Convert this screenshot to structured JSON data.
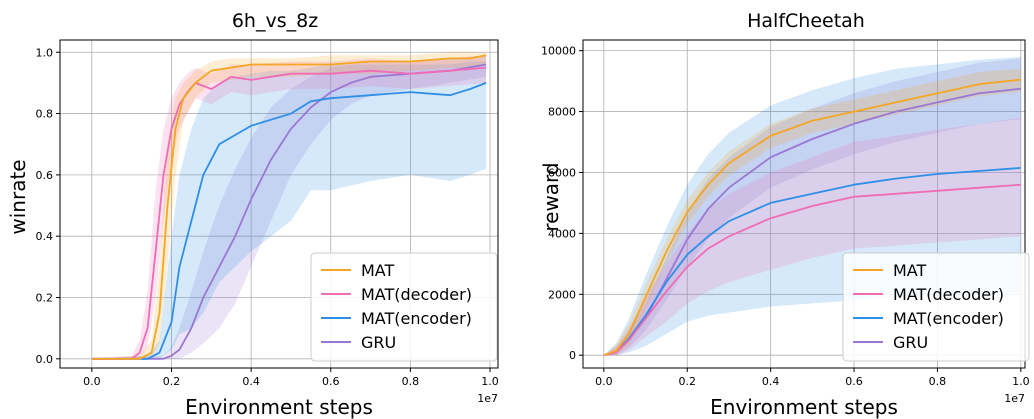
{
  "legend": {
    "entries": [
      {
        "key": "mat",
        "label": "MAT",
        "color": "#F5A623"
      },
      {
        "key": "dec",
        "label": "MAT(decoder)",
        "color": "#F06CB5"
      },
      {
        "key": "enc",
        "label": "MAT(encoder)",
        "color": "#2F8FE8"
      },
      {
        "key": "gru",
        "label": "GRU",
        "color": "#9B77D4"
      }
    ]
  },
  "chart_data": [
    {
      "type": "line",
      "title": "6h_vs_8z",
      "xlabel": "Environment steps",
      "ylabel": "winrate",
      "x_multiplier": "1e7",
      "xlim": [
        -0.08,
        1.02
      ],
      "ylim": [
        -0.03,
        1.04
      ],
      "xticks": [
        "0.0",
        "0.2",
        "0.4",
        "0.6",
        "0.8",
        "1.0"
      ],
      "yticks": [
        "0.0",
        "0.2",
        "0.4",
        "0.6",
        "0.8",
        "1.0"
      ],
      "grid": true,
      "legend_position": "lower-right",
      "series": [
        {
          "name": "MAT",
          "color": "#F5A623",
          "x": [
            0,
            0.12,
            0.15,
            0.17,
            0.19,
            0.21,
            0.23,
            0.26,
            0.3,
            0.35,
            0.4,
            0.5,
            0.6,
            0.7,
            0.8,
            0.9,
            0.95,
            0.99
          ],
          "y": [
            0,
            0,
            0.02,
            0.15,
            0.5,
            0.75,
            0.85,
            0.9,
            0.94,
            0.95,
            0.96,
            0.96,
            0.96,
            0.97,
            0.97,
            0.98,
            0.98,
            0.99
          ],
          "band": [
            [
              0,
              0
            ],
            [
              0,
              0.01
            ],
            [
              0,
              0.06
            ],
            [
              0.05,
              0.3
            ],
            [
              0.3,
              0.7
            ],
            [
              0.6,
              0.85
            ],
            [
              0.78,
              0.9
            ],
            [
              0.85,
              0.94
            ],
            [
              0.9,
              0.97
            ],
            [
              0.91,
              0.98
            ],
            [
              0.92,
              0.98
            ],
            [
              0.92,
              0.98
            ],
            [
              0.93,
              0.99
            ],
            [
              0.93,
              0.99
            ],
            [
              0.94,
              0.99
            ],
            [
              0.95,
              1.0
            ],
            [
              0.95,
              1.0
            ],
            [
              0.96,
              1.0
            ]
          ]
        },
        {
          "name": "MAT(decoder)",
          "color": "#F06CB5",
          "x": [
            0,
            0.1,
            0.12,
            0.14,
            0.16,
            0.18,
            0.2,
            0.22,
            0.24,
            0.26,
            0.3,
            0.35,
            0.4,
            0.5,
            0.6,
            0.7,
            0.8,
            0.9,
            0.99
          ],
          "y": [
            0,
            0,
            0.02,
            0.1,
            0.35,
            0.6,
            0.75,
            0.83,
            0.87,
            0.9,
            0.88,
            0.92,
            0.91,
            0.93,
            0.93,
            0.94,
            0.93,
            0.94,
            0.95
          ],
          "band": [
            [
              0,
              0
            ],
            [
              0,
              0.01
            ],
            [
              0,
              0.06
            ],
            [
              0.04,
              0.22
            ],
            [
              0.2,
              0.55
            ],
            [
              0.45,
              0.75
            ],
            [
              0.65,
              0.85
            ],
            [
              0.75,
              0.9
            ],
            [
              0.8,
              0.93
            ],
            [
              0.85,
              0.95
            ],
            [
              0.83,
              0.93
            ],
            [
              0.87,
              0.96
            ],
            [
              0.86,
              0.96
            ],
            [
              0.88,
              0.97
            ],
            [
              0.88,
              0.97
            ],
            [
              0.89,
              0.98
            ],
            [
              0.88,
              0.97
            ],
            [
              0.89,
              0.98
            ],
            [
              0.9,
              0.99
            ]
          ]
        },
        {
          "name": "MAT(encoder)",
          "color": "#2F8FE8",
          "x": [
            0,
            0.14,
            0.17,
            0.2,
            0.22,
            0.25,
            0.28,
            0.32,
            0.36,
            0.4,
            0.45,
            0.5,
            0.55,
            0.6,
            0.7,
            0.8,
            0.9,
            0.95,
            0.99
          ],
          "y": [
            0,
            0,
            0.02,
            0.12,
            0.3,
            0.45,
            0.6,
            0.7,
            0.73,
            0.76,
            0.78,
            0.8,
            0.84,
            0.85,
            0.86,
            0.87,
            0.86,
            0.88,
            0.9
          ],
          "band": [
            [
              0,
              0
            ],
            [
              0,
              0.01
            ],
            [
              0,
              0.06
            ],
            [
              0.03,
              0.4
            ],
            [
              0.08,
              0.6
            ],
            [
              0.1,
              0.75
            ],
            [
              0.15,
              0.85
            ],
            [
              0.25,
              0.9
            ],
            [
              0.3,
              0.92
            ],
            [
              0.35,
              0.93
            ],
            [
              0.4,
              0.94
            ],
            [
              0.45,
              0.94
            ],
            [
              0.55,
              0.95
            ],
            [
              0.55,
              0.96
            ],
            [
              0.58,
              0.96
            ],
            [
              0.6,
              0.96
            ],
            [
              0.58,
              0.96
            ],
            [
              0.6,
              0.97
            ],
            [
              0.62,
              0.97
            ]
          ]
        },
        {
          "name": "GRU",
          "color": "#9B77D4",
          "x": [
            0,
            0.18,
            0.2,
            0.22,
            0.25,
            0.28,
            0.32,
            0.36,
            0.4,
            0.45,
            0.5,
            0.55,
            0.6,
            0.65,
            0.7,
            0.8,
            0.9,
            0.99
          ],
          "y": [
            0,
            0,
            0.01,
            0.03,
            0.1,
            0.2,
            0.3,
            0.4,
            0.52,
            0.65,
            0.75,
            0.82,
            0.87,
            0.9,
            0.92,
            0.93,
            0.94,
            0.96
          ],
          "band": [
            [
              0,
              0
            ],
            [
              0,
              0.01
            ],
            [
              0,
              0.04
            ],
            [
              0,
              0.1
            ],
            [
              0.02,
              0.22
            ],
            [
              0.05,
              0.35
            ],
            [
              0.1,
              0.5
            ],
            [
              0.18,
              0.62
            ],
            [
              0.3,
              0.72
            ],
            [
              0.45,
              0.82
            ],
            [
              0.6,
              0.88
            ],
            [
              0.7,
              0.92
            ],
            [
              0.78,
              0.95
            ],
            [
              0.83,
              0.96
            ],
            [
              0.86,
              0.97
            ],
            [
              0.88,
              0.97
            ],
            [
              0.9,
              0.98
            ],
            [
              0.92,
              0.99
            ]
          ]
        }
      ]
    },
    {
      "type": "line",
      "title": "HalfCheetah",
      "xlabel": "Environment steps",
      "ylabel": "reward",
      "x_multiplier": "1e7",
      "xlim": [
        -0.05,
        1.01
      ],
      "ylim": [
        -420,
        10350
      ],
      "xticks": [
        "0.0",
        "0.2",
        "0.4",
        "0.6",
        "0.8",
        "1.0"
      ],
      "yticks": [
        "0",
        "2000",
        "4000",
        "6000",
        "8000",
        "10000"
      ],
      "grid": true,
      "legend_position": "lower-right",
      "series": [
        {
          "name": "MAT",
          "color": "#F5A623",
          "x": [
            0,
            0.03,
            0.06,
            0.1,
            0.15,
            0.2,
            0.25,
            0.3,
            0.4,
            0.5,
            0.6,
            0.7,
            0.8,
            0.9,
            1.0
          ],
          "y": [
            0,
            150,
            700,
            1900,
            3400,
            4700,
            5600,
            6300,
            7200,
            7700,
            8000,
            8300,
            8600,
            8900,
            9050
          ],
          "band": [
            [
              0,
              0
            ],
            [
              0,
              350
            ],
            [
              350,
              1050
            ],
            [
              1500,
              2300
            ],
            [
              3000,
              3800
            ],
            [
              4300,
              5100
            ],
            [
              5200,
              6000
            ],
            [
              5900,
              6700
            ],
            [
              6800,
              7600
            ],
            [
              7300,
              8100
            ],
            [
              7600,
              8400
            ],
            [
              7900,
              8700
            ],
            [
              8200,
              9000
            ],
            [
              8500,
              9300
            ],
            [
              8650,
              9400
            ]
          ]
        },
        {
          "name": "MAT(decoder)",
          "color": "#F06CB5",
          "x": [
            0,
            0.03,
            0.06,
            0.1,
            0.15,
            0.2,
            0.25,
            0.3,
            0.4,
            0.5,
            0.6,
            0.7,
            0.8,
            0.9,
            1.0
          ],
          "y": [
            0,
            100,
            500,
            1200,
            2100,
            2900,
            3500,
            3900,
            4500,
            4900,
            5200,
            5300,
            5400,
            5500,
            5600
          ],
          "band": [
            [
              0,
              0
            ],
            [
              0,
              300
            ],
            [
              150,
              900
            ],
            [
              600,
              1900
            ],
            [
              1100,
              3000
            ],
            [
              1700,
              4000
            ],
            [
              2100,
              4800
            ],
            [
              2400,
              5300
            ],
            [
              2800,
              6000
            ],
            [
              3200,
              6500
            ],
            [
              3500,
              7000
            ],
            [
              3600,
              7200
            ],
            [
              3700,
              7400
            ],
            [
              3800,
              7600
            ],
            [
              3900,
              7800
            ]
          ]
        },
        {
          "name": "MAT(encoder)",
          "color": "#2F8FE8",
          "x": [
            0,
            0.03,
            0.06,
            0.1,
            0.15,
            0.2,
            0.25,
            0.3,
            0.4,
            0.5,
            0.6,
            0.7,
            0.8,
            0.9,
            1.0
          ],
          "y": [
            0,
            120,
            550,
            1300,
            2400,
            3300,
            3900,
            4400,
            5000,
            5300,
            5600,
            5800,
            5950,
            6050,
            6150
          ],
          "band": [
            [
              0,
              0
            ],
            [
              0,
              400
            ],
            [
              100,
              1200
            ],
            [
              300,
              2600
            ],
            [
              700,
              4200
            ],
            [
              1100,
              5600
            ],
            [
              1300,
              6600
            ],
            [
              1400,
              7300
            ],
            [
              1600,
              8200
            ],
            [
              1700,
              8700
            ],
            [
              1800,
              9100
            ],
            [
              1900,
              9400
            ],
            [
              1950,
              9550
            ],
            [
              2000,
              9700
            ],
            [
              2050,
              9800
            ]
          ]
        },
        {
          "name": "GRU",
          "color": "#9B77D4",
          "x": [
            0,
            0.03,
            0.06,
            0.1,
            0.15,
            0.2,
            0.25,
            0.3,
            0.4,
            0.5,
            0.6,
            0.7,
            0.8,
            0.9,
            1.0
          ],
          "y": [
            0,
            100,
            500,
            1200,
            2500,
            3800,
            4800,
            5500,
            6500,
            7100,
            7600,
            8000,
            8300,
            8600,
            8750
          ],
          "band": [
            [
              0,
              0
            ],
            [
              0,
              250
            ],
            [
              250,
              800
            ],
            [
              800,
              1700
            ],
            [
              1800,
              3200
            ],
            [
              2900,
              4700
            ],
            [
              3800,
              5800
            ],
            [
              4500,
              6500
            ],
            [
              5500,
              7500
            ],
            [
              6100,
              8100
            ],
            [
              6600,
              8600
            ],
            [
              7000,
              9000
            ],
            [
              7300,
              9300
            ],
            [
              7600,
              9600
            ],
            [
              7750,
              9750
            ]
          ]
        }
      ]
    }
  ]
}
